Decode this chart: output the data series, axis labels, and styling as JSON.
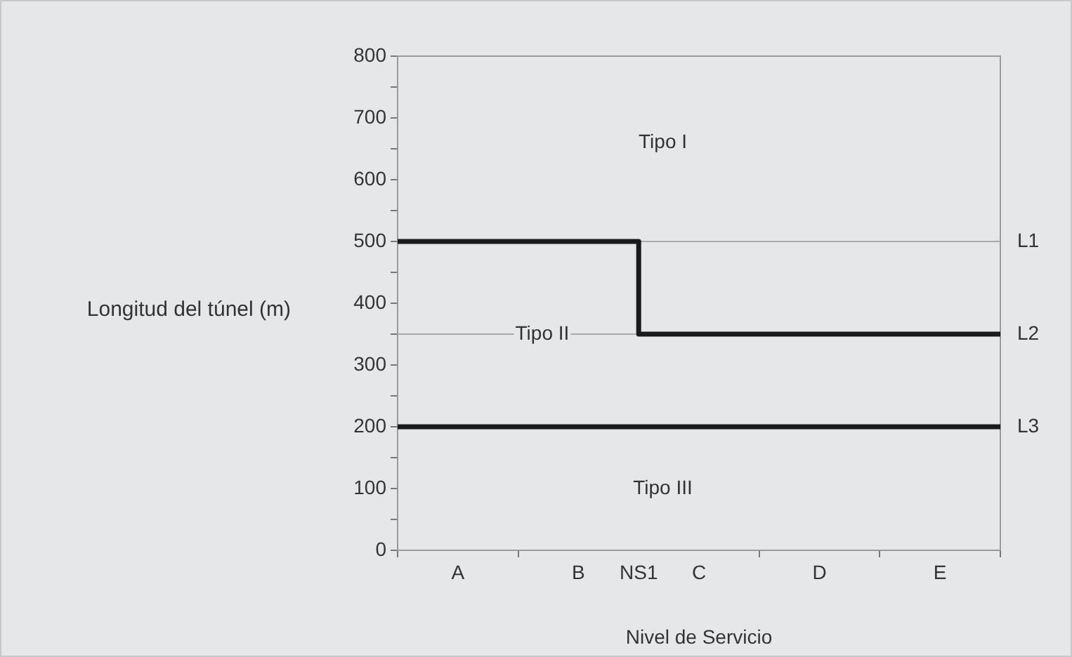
{
  "chart_data": {
    "type": "step",
    "xlabel": "Nivel de Servicio",
    "ylabel": "Longitud del túnel (m)",
    "categories": [
      null,
      "A",
      null,
      "B",
      "NS1",
      "C",
      null,
      "D",
      null,
      "E",
      null
    ],
    "ylim": [
      0,
      800
    ],
    "yticks": [
      0,
      {
        "value": 50,
        "label": null
      },
      100,
      {
        "value": 150,
        "label": null
      },
      200,
      {
        "value": 250,
        "label": null
      },
      300,
      {
        "value": 350,
        "label": null
      },
      400,
      {
        "value": 450,
        "label": null
      },
      500,
      {
        "value": 550,
        "label": null
      },
      600,
      {
        "value": 650,
        "label": null
      },
      700,
      {
        "value": 750,
        "label": null
      },
      800
    ],
    "series": [
      {
        "values": [
          500,
          500,
          500,
          500,
          350,
          350,
          350,
          350,
          350,
          350,
          350
        ],
        "color": "#1a1a1a"
      },
      {
        "type": "line",
        "name": "L3",
        "values": [
          200,
          200,
          200,
          200,
          200,
          200,
          200,
          200,
          200,
          200,
          200
        ],
        "color": "#1a1a1a"
      }
    ],
    "ref_lines": [
      {
        "axis": "y",
        "value": 500,
        "label": "L1",
        "color": "#aaaaaa"
      },
      {
        "axis": "y",
        "value": 350,
        "label": "L2",
        "color": "#aaaaaa"
      }
    ],
    "annotations": [
      "Tipo I",
      "Tipo II",
      "Tipo III"
    ],
    "grid": false,
    "legend": false,
    "marker": "none",
    "line_style": "solid"
  }
}
